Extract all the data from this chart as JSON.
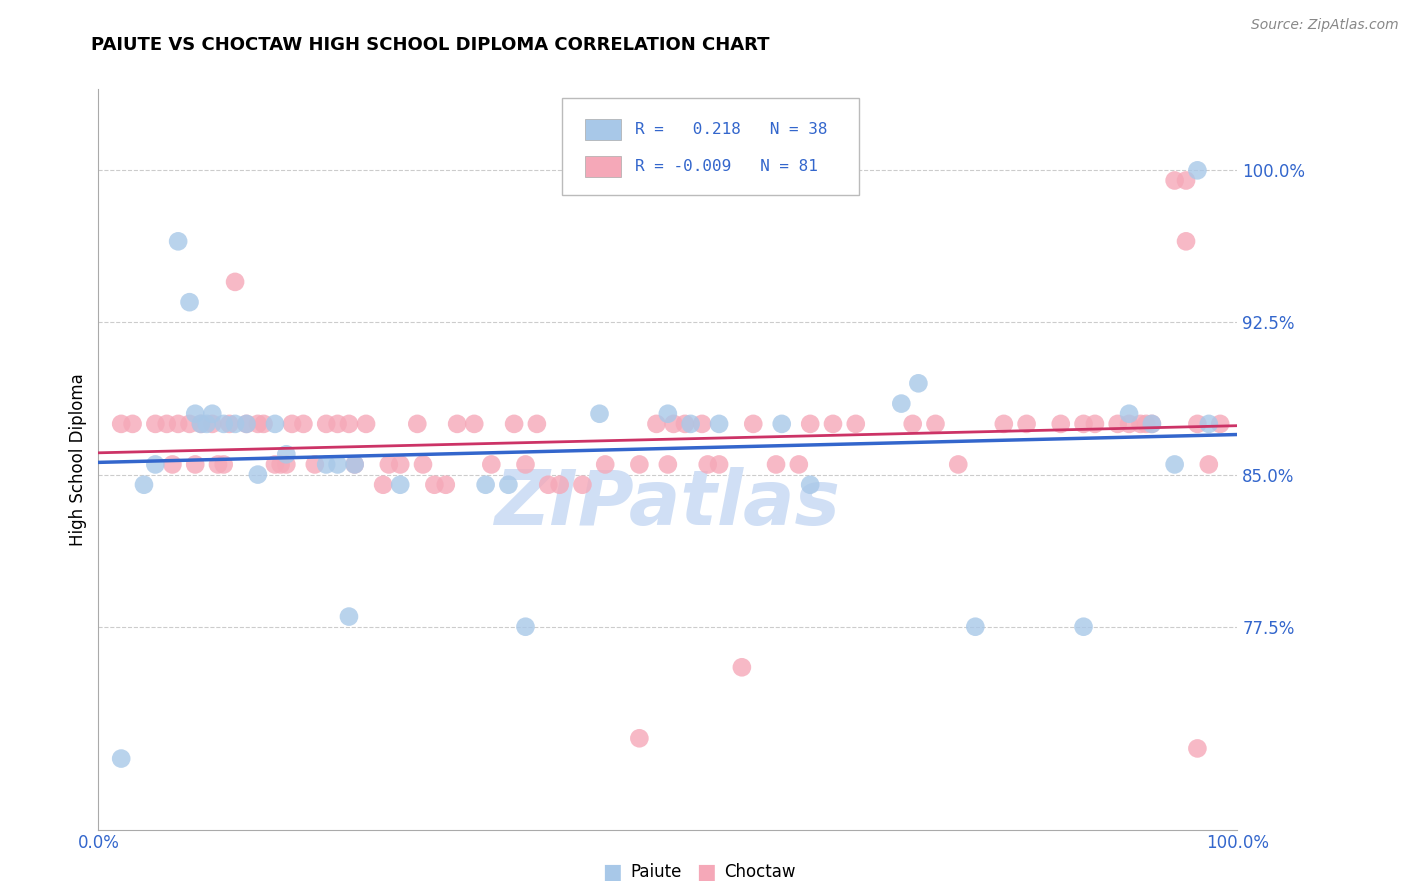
{
  "title": "PAIUTE VS CHOCTAW HIGH SCHOOL DIPLOMA CORRELATION CHART",
  "source": "Source: ZipAtlas.com",
  "ylabel": "High School Diploma",
  "y_ticks": [
    0.775,
    0.85,
    0.925,
    1.0
  ],
  "y_tick_labels": [
    "77.5%",
    "85.0%",
    "92.5%",
    "100.0%"
  ],
  "x_range": [
    0.0,
    1.0
  ],
  "y_range": [
    0.675,
    1.04
  ],
  "paiute_R": 0.218,
  "paiute_N": 38,
  "choctaw_R": -0.009,
  "choctaw_N": 81,
  "paiute_color": "#a8c8e8",
  "choctaw_color": "#f5a8b8",
  "blue_line_color": "#3366cc",
  "pink_line_color": "#cc3366",
  "watermark_color": "#d0dff5",
  "background_color": "#ffffff",
  "paiute_x": [
    0.02,
    0.07,
    0.08,
    0.085,
    0.09,
    0.095,
    0.1,
    0.11,
    0.12,
    0.13,
    0.14,
    0.155,
    0.165,
    0.2,
    0.21,
    0.22,
    0.225,
    0.265,
    0.34,
    0.36,
    0.375,
    0.5,
    0.52,
    0.6,
    0.625,
    0.72,
    0.77,
    0.865,
    0.905,
    0.925,
    0.945,
    0.965,
    0.975,
    0.04,
    0.05,
    0.44,
    0.545,
    0.705
  ],
  "paiute_y": [
    0.71,
    0.965,
    0.935,
    0.88,
    0.875,
    0.875,
    0.88,
    0.875,
    0.875,
    0.875,
    0.85,
    0.875,
    0.86,
    0.855,
    0.855,
    0.78,
    0.855,
    0.845,
    0.845,
    0.845,
    0.775,
    0.88,
    0.875,
    0.875,
    0.845,
    0.895,
    0.775,
    0.775,
    0.88,
    0.875,
    0.855,
    1.0,
    0.875,
    0.845,
    0.855,
    0.88,
    0.875,
    0.885
  ],
  "choctaw_x": [
    0.02,
    0.03,
    0.05,
    0.06,
    0.065,
    0.07,
    0.08,
    0.085,
    0.09,
    0.1,
    0.105,
    0.11,
    0.115,
    0.12,
    0.13,
    0.14,
    0.145,
    0.155,
    0.16,
    0.165,
    0.17,
    0.18,
    0.19,
    0.2,
    0.21,
    0.22,
    0.225,
    0.235,
    0.25,
    0.255,
    0.265,
    0.28,
    0.285,
    0.295,
    0.305,
    0.315,
    0.33,
    0.345,
    0.365,
    0.375,
    0.385,
    0.395,
    0.405,
    0.425,
    0.445,
    0.475,
    0.49,
    0.5,
    0.505,
    0.515,
    0.535,
    0.545,
    0.565,
    0.595,
    0.615,
    0.625,
    0.645,
    0.665,
    0.715,
    0.735,
    0.755,
    0.795,
    0.815,
    0.845,
    0.865,
    0.875,
    0.895,
    0.905,
    0.915,
    0.92,
    0.925,
    0.945,
    0.955,
    0.965,
    0.975,
    0.985,
    0.53,
    0.575,
    0.955,
    0.475,
    0.965
  ],
  "choctaw_y": [
    0.875,
    0.875,
    0.875,
    0.875,
    0.855,
    0.875,
    0.875,
    0.855,
    0.875,
    0.875,
    0.855,
    0.855,
    0.875,
    0.945,
    0.875,
    0.875,
    0.875,
    0.855,
    0.855,
    0.855,
    0.875,
    0.875,
    0.855,
    0.875,
    0.875,
    0.875,
    0.855,
    0.875,
    0.845,
    0.855,
    0.855,
    0.875,
    0.855,
    0.845,
    0.845,
    0.875,
    0.875,
    0.855,
    0.875,
    0.855,
    0.875,
    0.845,
    0.845,
    0.845,
    0.855,
    0.855,
    0.875,
    0.855,
    0.875,
    0.875,
    0.855,
    0.855,
    0.755,
    0.855,
    0.855,
    0.875,
    0.875,
    0.875,
    0.875,
    0.875,
    0.855,
    0.875,
    0.875,
    0.875,
    0.875,
    0.875,
    0.875,
    0.875,
    0.875,
    0.875,
    0.875,
    0.995,
    0.995,
    0.875,
    0.855,
    0.875,
    0.875,
    0.875,
    0.965,
    0.72,
    0.715
  ]
}
